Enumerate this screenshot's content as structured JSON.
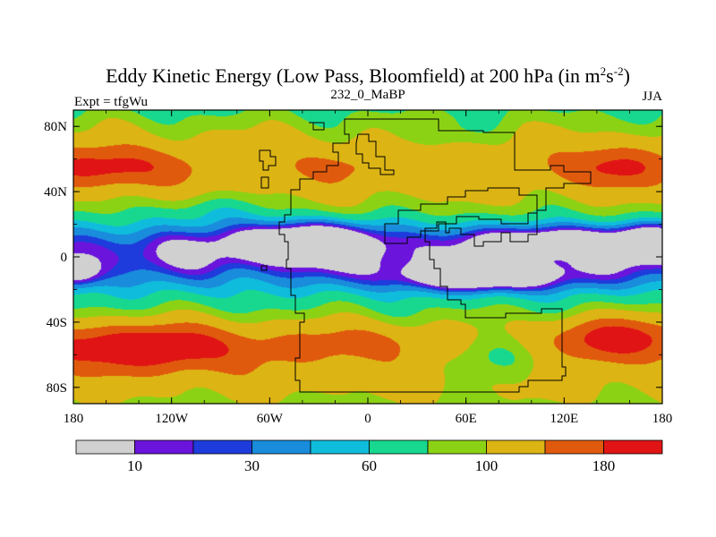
{
  "chart_data": {
    "type": "heatmap",
    "title": "Eddy Kinetic Energy (Low Pass, Bloomfield) at 200 hPa (in m",
    "title_unit_sup1": "2",
    "title_unit_mid": "s",
    "title_unit_sup2": "-2",
    "title_end": ")",
    "left_string": "Expt = tfgWu",
    "center_string": "232_0_MaBP",
    "right_string": "JJA",
    "x_ticks": [
      "180",
      "120W",
      "60W",
      "0",
      "60E",
      "120E",
      "180"
    ],
    "x_tick_values": [
      -180,
      -120,
      -60,
      0,
      60,
      120,
      180
    ],
    "y_ticks": [
      "80N",
      "40N",
      "0",
      "40S",
      "80S"
    ],
    "y_tick_values": [
      80,
      40,
      0,
      -40,
      -80
    ],
    "xlim": [
      -180,
      180
    ],
    "ylim": [
      -90,
      90
    ],
    "levels": [
      10,
      20,
      30,
      45,
      60,
      80,
      100,
      140,
      180
    ],
    "colorbar_labels": [
      "10",
      "30",
      "60",
      "100",
      "180"
    ],
    "colorbar_label_levels": [
      10,
      30,
      60,
      100,
      180
    ],
    "colors": [
      "#d0d0d0",
      "#6a14dc",
      "#1e3cdc",
      "#1a8cdc",
      "#10bcdc",
      "#18d890",
      "#8cd214",
      "#dcb414",
      "#e05a0e",
      "#e01414"
    ],
    "field_samples": [
      {
        "lon": -160,
        "lat": 55,
        "value": 150
      },
      {
        "lon": 150,
        "lat": 55,
        "value": 150
      },
      {
        "lon": -140,
        "lat": -55,
        "value": 195
      },
      {
        "lon": 150,
        "lat": -50,
        "value": 190
      },
      {
        "lon": -50,
        "lat": 10,
        "value": 20
      },
      {
        "lon": 70,
        "lat": -12,
        "value": 18
      },
      {
        "lon": 120,
        "lat": 10,
        "value": 25
      },
      {
        "lon": 170,
        "lat": 12,
        "value": 25
      },
      {
        "lon": -175,
        "lat": -10,
        "value": 30
      },
      {
        "lon": 30,
        "lat": 60,
        "value": 95
      },
      {
        "lon": -90,
        "lat": 80,
        "value": 85
      }
    ]
  }
}
